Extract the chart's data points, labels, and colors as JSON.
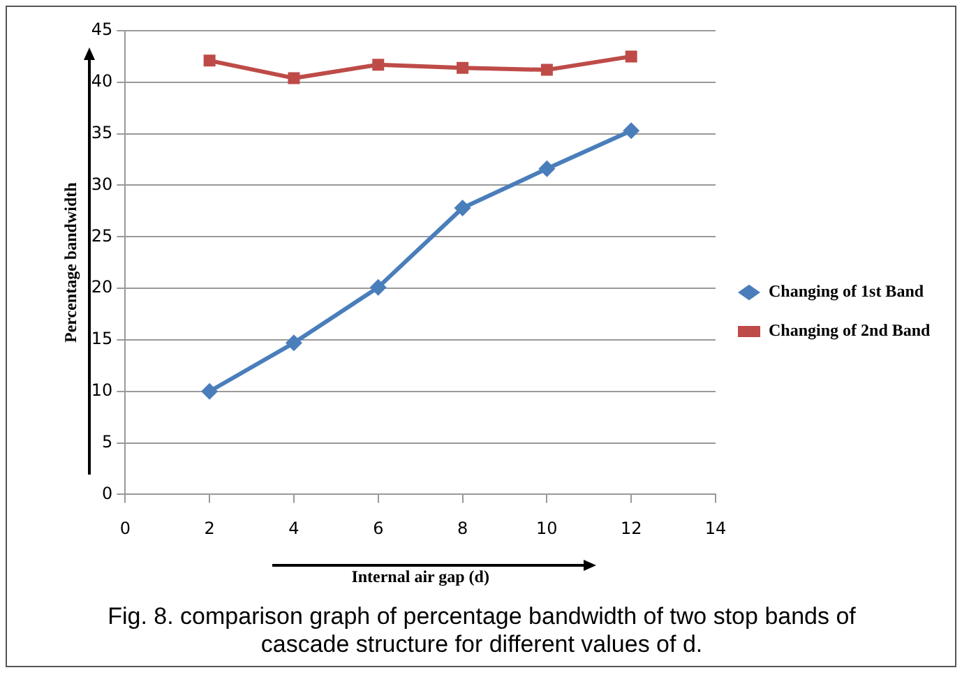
{
  "chart_data": {
    "type": "line",
    "xlabel": "Internal air gap (d)",
    "ylabel": "Percentage bandwidth",
    "x": [
      2,
      4,
      6,
      8,
      10,
      12
    ],
    "series": [
      {
        "name": "Changing of 1st Band",
        "color": "#4a7ebb",
        "marker": "diamond",
        "values": [
          10,
          14.7,
          20.1,
          27.8,
          31.6,
          35.3
        ]
      },
      {
        "name": "Changing of 2nd Band",
        "color": "#be4b48",
        "marker": "square",
        "values": [
          42.1,
          40.4,
          41.7,
          41.4,
          41.2,
          42.5
        ]
      }
    ],
    "xlim": [
      0,
      14
    ],
    "xticks": [
      0,
      2,
      4,
      6,
      8,
      10,
      12,
      14
    ],
    "ylim": [
      0,
      45
    ],
    "yticks": [
      0,
      5,
      10,
      15,
      20,
      25,
      30,
      35,
      40,
      45
    ],
    "grid": "y",
    "legend": "right",
    "line_style": "solid",
    "annotations": [
      "Fig. 8. comparison graph of percentage bandwidth of two stop bands of cascade structure for different values of d."
    ]
  }
}
